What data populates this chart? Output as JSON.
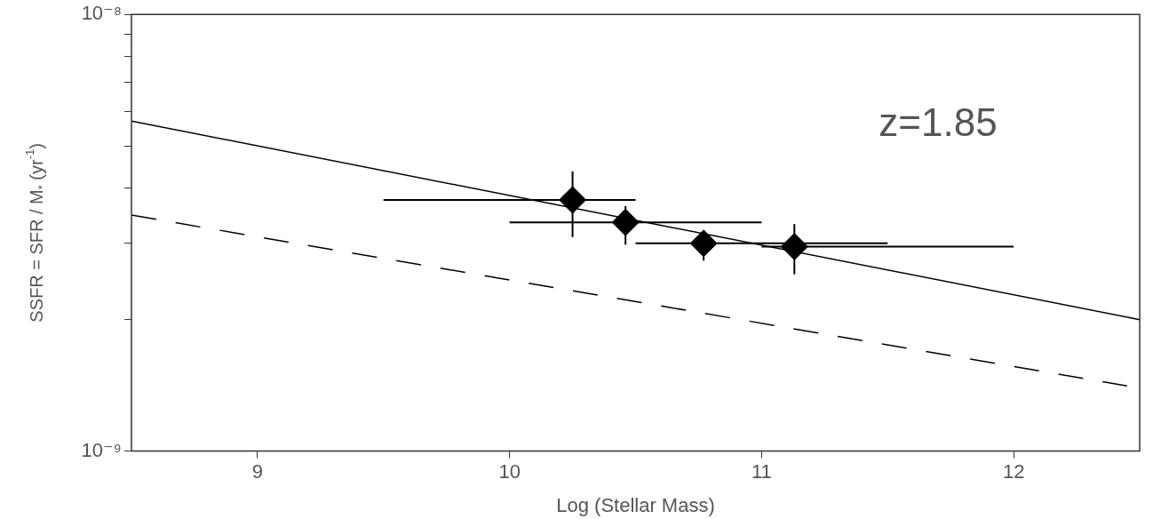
{
  "chart_data": {
    "type": "scatter",
    "xlabel": "Log (Stellar Mass)",
    "ylabel": "SSFR = SFR / M$_{*}$ (yr$^{-1}$)",
    "log": "y",
    "grid": false,
    "legend": false,
    "xlim": [
      8.5,
      12.5
    ],
    "xticks": [
      9,
      10,
      11,
      12
    ],
    "ylim": [
      1e-09,
      1e-08
    ],
    "yticks": [
      {
        "value": 1e-09,
        "label": "10⁻⁹"
      },
      {
        "value": 2e-09,
        "label": null
      },
      {
        "value": 3e-09,
        "label": null
      },
      {
        "value": 4e-09,
        "label": null
      },
      {
        "value": 5e-09,
        "label": null
      },
      {
        "value": 6e-09,
        "label": null
      },
      {
        "value": 7e-09,
        "label": null
      },
      {
        "value": 8e-09,
        "label": null
      },
      {
        "value": 9e-09,
        "label": null
      },
      {
        "value": 1e-08,
        "label": "10⁻⁸"
      }
    ],
    "annotations": [
      "z=1.85"
    ],
    "series": [
      {
        "marker": "diamond",
        "color": "#000000",
        "x": [
          10.25,
          10.46,
          10.77,
          11.13
        ],
        "values": [
          3.76e-09,
          3.34e-09,
          2.99e-09,
          2.94e-09
        ],
        "errors": [
          [
            3.09e-09,
            4.37e-09
          ],
          [
            2.97e-09,
            3.64e-09
          ],
          [
            2.73e-09,
            3.18e-09
          ],
          [
            2.54e-09,
            3.31e-09
          ]
        ],
        "xerrors": [
          [
            9.5,
            10.5
          ],
          [
            10.0,
            11.0
          ],
          [
            10.5,
            11.5
          ],
          [
            11.0,
            12.0
          ]
        ]
      },
      {
        "type": "line",
        "line_style": "solid",
        "marker": "none",
        "color": "#000000",
        "x": [
          8.5,
          12.5
        ],
        "values": [
          5.7e-09,
          2e-09
        ]
      },
      {
        "type": "line",
        "line_style": "dashed",
        "marker": "none",
        "color": "#000000",
        "x": [
          8.5,
          12.45
        ],
        "values": [
          3.47e-09,
          1.41e-09
        ]
      }
    ]
  }
}
